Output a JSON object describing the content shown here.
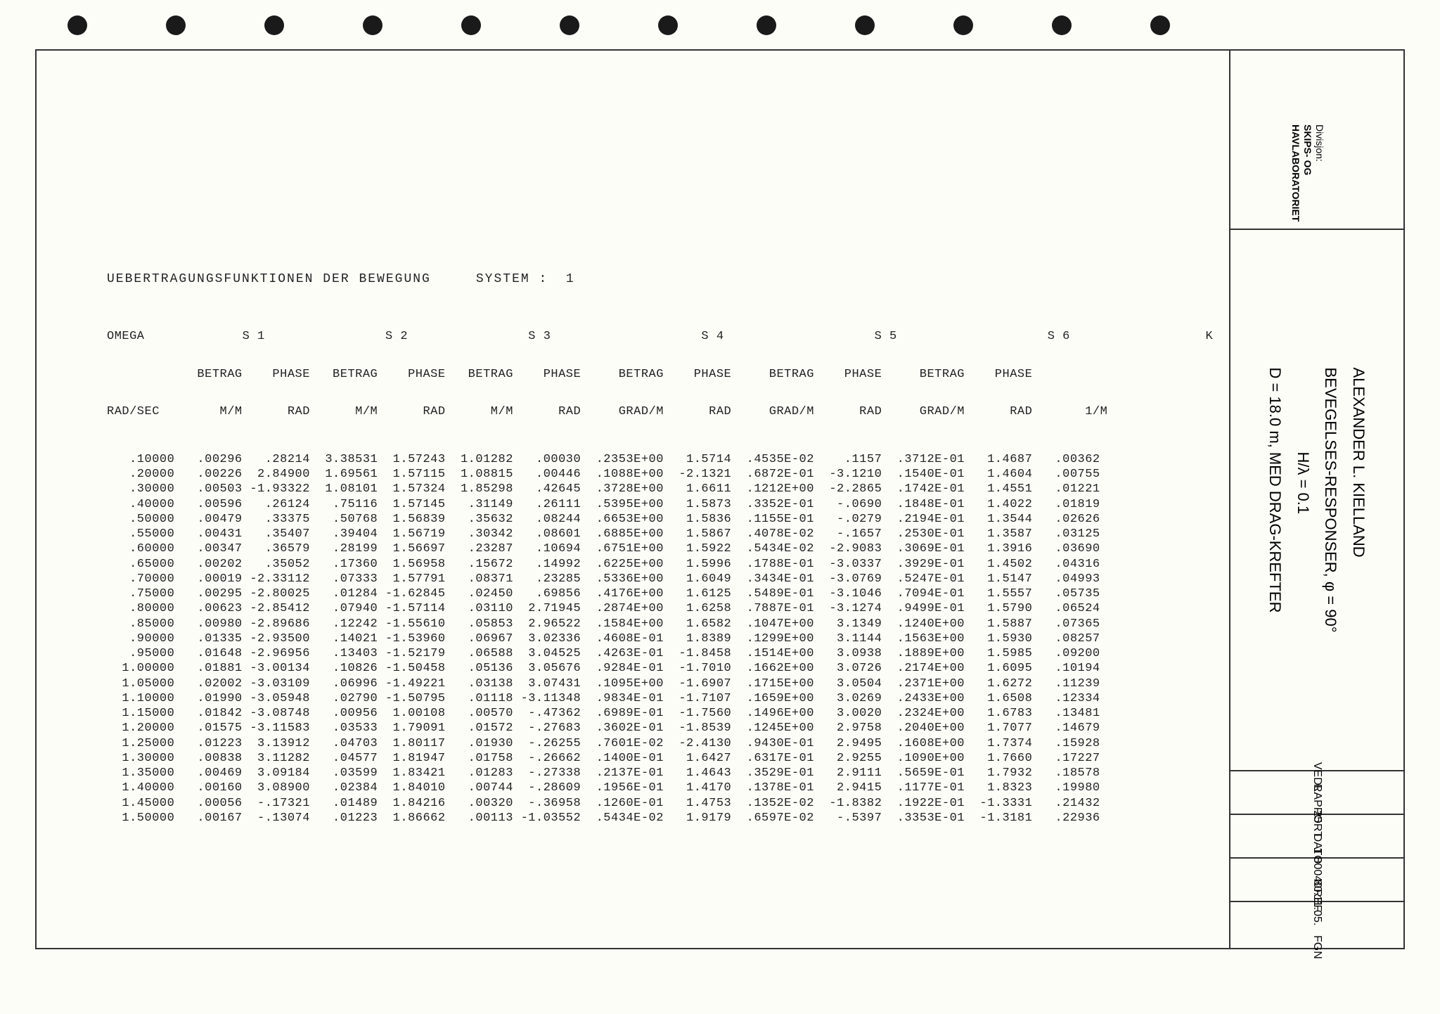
{
  "title": "UEBERTRAGUNGSFUNKTIONEN DER BEWEGUNG     SYSTEM :  1",
  "columns": {
    "omega_h1": "OMEGA",
    "omega_h2": "RAD/SEC",
    "s1_h": "S 1",
    "s2_h": "S 2",
    "s3_h": "S 3",
    "s4_h": "S 4",
    "s5_h": "S 5",
    "s6_h": "S 6",
    "betrag": "BETRAG",
    "phase": "PHASE",
    "mm": "M/M",
    "rad": "RAD",
    "gradm": "GRAD/M",
    "k_h": "K",
    "k_u": "1/M"
  },
  "rows": [
    [
      ".10000",
      ".00296",
      ".28214",
      "3.38531",
      "1.57243",
      "1.01282",
      ".00030",
      ".2353E+00",
      "1.5714",
      ".4535E-02",
      ".1157",
      ".3712E-01",
      "1.4687",
      ".00362"
    ],
    [
      ".20000",
      ".00226",
      "2.84900",
      "1.69561",
      "1.57115",
      "1.08815",
      ".00446",
      ".1088E+00",
      "-2.1321",
      ".6872E-01",
      "-3.1210",
      ".1540E-01",
      "1.4604",
      ".00755"
    ],
    [
      ".30000",
      ".00503",
      "-1.93322",
      "1.08101",
      "1.57324",
      "1.85298",
      ".42645",
      ".3728E+00",
      "1.6611",
      ".1212E+00",
      "-2.2865",
      ".1742E-01",
      "1.4551",
      ".01221"
    ],
    [
      ".40000",
      ".00596",
      ".26124",
      ".75116",
      "1.57145",
      ".31149",
      ".26111",
      ".5395E+00",
      "1.5873",
      ".3352E-01",
      "-.0690",
      ".1848E-01",
      "1.4022",
      ".01819"
    ],
    [
      ".50000",
      ".00479",
      ".33375",
      ".50768",
      "1.56839",
      ".35632",
      ".08244",
      ".6653E+00",
      "1.5836",
      ".1155E-01",
      "-.0279",
      ".2194E-01",
      "1.3544",
      ".02626"
    ],
    [
      ".55000",
      ".00431",
      ".35407",
      ".39404",
      "1.56719",
      ".30342",
      ".08601",
      ".6885E+00",
      "1.5867",
      ".4078E-02",
      "-.1657",
      ".2530E-01",
      "1.3587",
      ".03125"
    ],
    [
      ".60000",
      ".00347",
      ".36579",
      ".28199",
      "1.56697",
      ".23287",
      ".10694",
      ".6751E+00",
      "1.5922",
      ".5434E-02",
      "-2.9083",
      ".3069E-01",
      "1.3916",
      ".03690"
    ],
    [
      ".65000",
      ".00202",
      ".35052",
      ".17360",
      "1.56958",
      ".15672",
      ".14992",
      ".6225E+00",
      "1.5996",
      ".1788E-01",
      "-3.0337",
      ".3929E-01",
      "1.4502",
      ".04316"
    ],
    [
      ".70000",
      ".00019",
      "-2.33112",
      ".07333",
      "1.57791",
      ".08371",
      ".23285",
      ".5336E+00",
      "1.6049",
      ".3434E-01",
      "-3.0769",
      ".5247E-01",
      "1.5147",
      ".04993"
    ],
    [
      ".75000",
      ".00295",
      "-2.80025",
      ".01284",
      "-1.62845",
      ".02450",
      ".69856",
      ".4176E+00",
      "1.6125",
      ".5489E-01",
      "-3.1046",
      ".7094E-01",
      "1.5557",
      ".05735"
    ],
    [
      ".80000",
      ".00623",
      "-2.85412",
      ".07940",
      "-1.57114",
      ".03110",
      "2.71945",
      ".2874E+00",
      "1.6258",
      ".7887E-01",
      "-3.1274",
      ".9499E-01",
      "1.5790",
      ".06524"
    ],
    [
      ".85000",
      ".00980",
      "-2.89686",
      ".12242",
      "-1.55610",
      ".05853",
      "2.96522",
      ".1584E+00",
      "1.6582",
      ".1047E+00",
      "3.1349",
      ".1240E+00",
      "1.5887",
      ".07365"
    ],
    [
      ".90000",
      ".01335",
      "-2.93500",
      ".14021",
      "-1.53960",
      ".06967",
      "3.02336",
      ".4608E-01",
      "1.8389",
      ".1299E+00",
      "3.1144",
      ".1563E+00",
      "1.5930",
      ".08257"
    ],
    [
      ".95000",
      ".01648",
      "-2.96956",
      ".13403",
      "-1.52179",
      ".06588",
      "3.04525",
      ".4263E-01",
      "-1.8458",
      ".1514E+00",
      "3.0938",
      ".1889E+00",
      "1.5985",
      ".09200"
    ],
    [
      "1.00000",
      ".01881",
      "-3.00134",
      ".10826",
      "-1.50458",
      ".05136",
      "3.05676",
      ".9284E-01",
      "-1.7010",
      ".1662E+00",
      "3.0726",
      ".2174E+00",
      "1.6095",
      ".10194"
    ],
    [
      "1.05000",
      ".02002",
      "-3.03109",
      ".06996",
      "-1.49221",
      ".03138",
      "3.07431",
      ".1095E+00",
      "-1.6907",
      ".1715E+00",
      "3.0504",
      ".2371E+00",
      "1.6272",
      ".11239"
    ],
    [
      "1.10000",
      ".01990",
      "-3.05948",
      ".02790",
      "-1.50795",
      ".01118",
      "-3.11348",
      ".9834E-01",
      "-1.7107",
      ".1659E+00",
      "3.0269",
      ".2433E+00",
      "1.6508",
      ".12334"
    ],
    [
      "1.15000",
      ".01842",
      "-3.08748",
      ".00956",
      "1.00108",
      ".00570",
      "-.47362",
      ".6989E-01",
      "-1.7560",
      ".1496E+00",
      "3.0020",
      ".2324E+00",
      "1.6783",
      ".13481"
    ],
    [
      "1.20000",
      ".01575",
      "-3.11583",
      ".03533",
      "1.79091",
      ".01572",
      "-.27683",
      ".3602E-01",
      "-1.8539",
      ".1245E+00",
      "2.9758",
      ".2040E+00",
      "1.7077",
      ".14679"
    ],
    [
      "1.25000",
      ".01223",
      "3.13912",
      ".04703",
      "1.80117",
      ".01930",
      "-.26255",
      ".7601E-02",
      "-2.4130",
      ".9430E-01",
      "2.9495",
      ".1608E+00",
      "1.7374",
      ".15928"
    ],
    [
      "1.30000",
      ".00838",
      "3.11282",
      ".04577",
      "1.81947",
      ".01758",
      "-.26662",
      ".1400E-01",
      "1.6427",
      ".6317E-01",
      "2.9255",
      ".1090E+00",
      "1.7660",
      ".17227"
    ],
    [
      "1.35000",
      ".00469",
      "3.09184",
      ".03599",
      "1.83421",
      ".01283",
      "-.27338",
      ".2137E-01",
      "1.4643",
      ".3529E-01",
      "2.9111",
      ".5659E-01",
      "1.7932",
      ".18578"
    ],
    [
      "1.40000",
      ".00160",
      "3.08900",
      ".02384",
      "1.84010",
      ".00744",
      "-.28609",
      ".1956E-01",
      "1.4170",
      ".1378E-01",
      "2.9415",
      ".1177E-01",
      "1.8323",
      ".19980"
    ],
    [
      "1.45000",
      ".00056",
      "-.17321",
      ".01489",
      "1.84216",
      ".00320",
      "-.36958",
      ".1260E-01",
      "1.4753",
      ".1352E-02",
      "-1.8382",
      ".1922E-01",
      "-1.3331",
      ".21432"
    ],
    [
      "1.50000",
      ".00167",
      "-.13074",
      ".01223",
      "1.86662",
      ".00113",
      "-1.03552",
      ".5434E-02",
      "1.9179",
      ".6597E-02",
      "-.5397",
      ".3353E-01",
      "-1.3181",
      ".22936"
    ]
  ],
  "sidebar": {
    "division_label": "Divisjon:",
    "division_value": "SKIPS- OG\nHAVLABORATORIET",
    "line1": "ALEXANDER L. KIELLAND",
    "line2": "BEVEGELSES-RESPONSER, φ = 90°",
    "line3": "H/λ = 0.1",
    "line4": "D = 18.0 m, MED DRAG-KREFTER",
    "vedl_label": "VEDL.",
    "vedl_value": "25",
    "rapport_label": "RAPPORT",
    "rapport_value": "1 80040",
    "dato_label": "DATO",
    "dato_value": "80.11.05.",
    "ref_label": "REF.",
    "ref_value": "FGN"
  }
}
